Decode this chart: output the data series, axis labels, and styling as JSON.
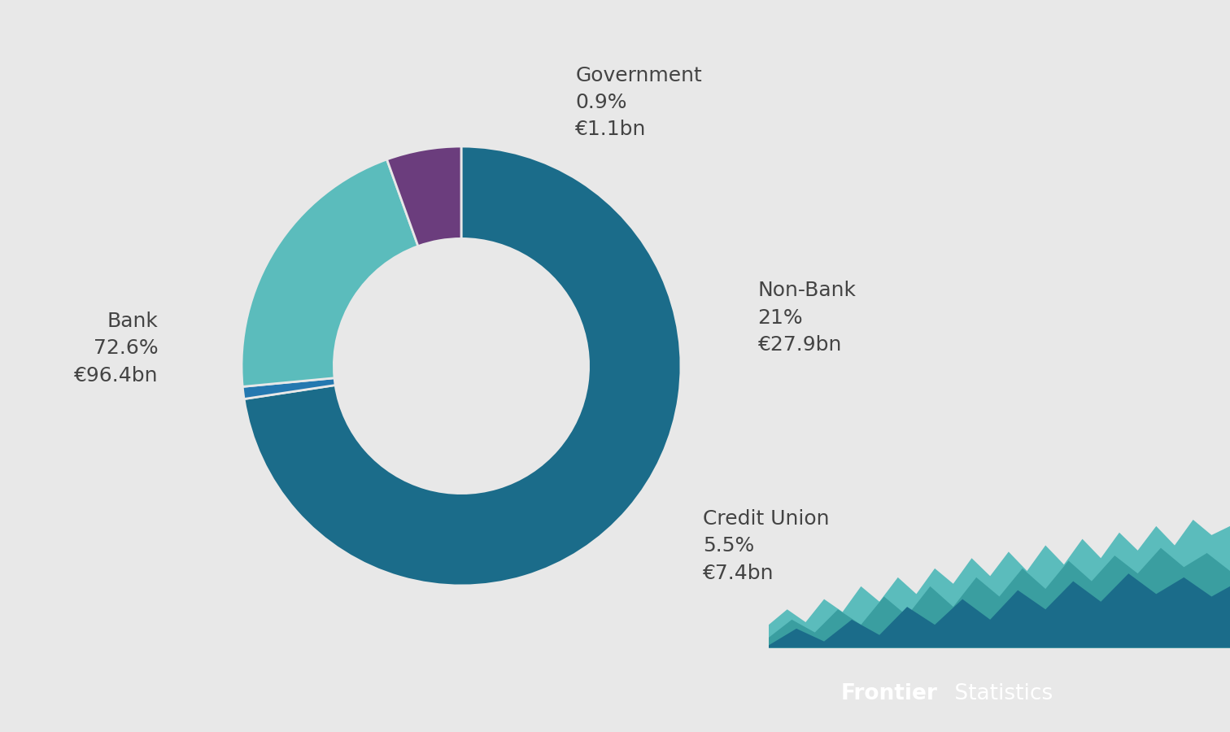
{
  "segments": [
    "Bank",
    "Government",
    "Non-Bank",
    "Credit Union"
  ],
  "values": [
    72.6,
    0.9,
    21.0,
    5.5
  ],
  "amounts": [
    "€96.4bn",
    "€1.1bn",
    "€27.9bn",
    "€7.4bn"
  ],
  "percentages": [
    "72.6%",
    "0.9%",
    "21%",
    "5.5%"
  ],
  "colors": [
    "#1b6c8a",
    "#2478b0",
    "#5bbcbc",
    "#6b3d7d"
  ],
  "background_color": "#e8e8e8",
  "label_color": "#444444",
  "donut_width": 0.42,
  "startangle": 90,
  "label_fontsize": 18,
  "logo_dark_color": "#3d3d3d",
  "logo_teal1": "#1b6c8a",
  "logo_teal2": "#5bbcbc",
  "logo_teal3": "#3a9ea0"
}
